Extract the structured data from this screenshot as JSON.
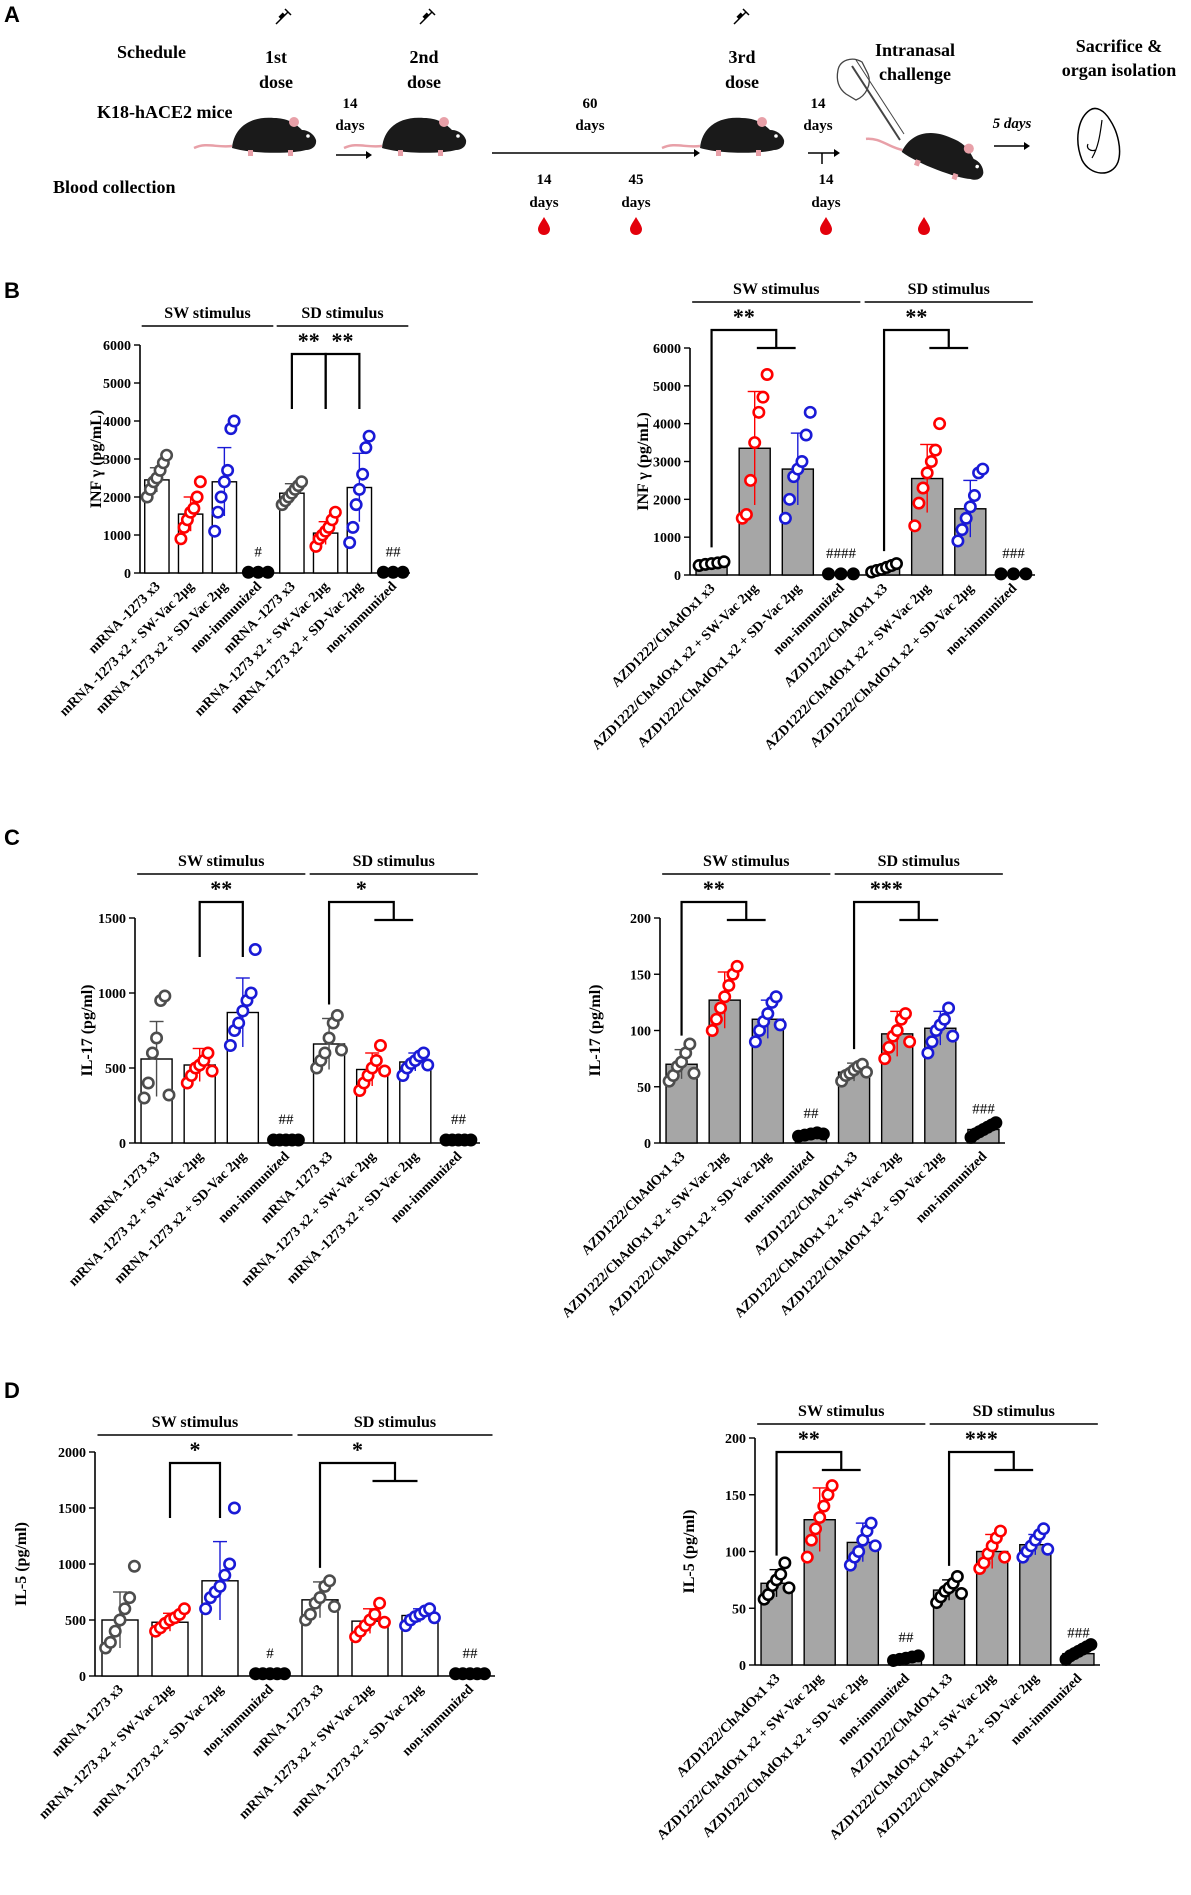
{
  "colors": {
    "black": "#000000",
    "gray": "#4d4d4d",
    "red": "#ff0000",
    "blue": "#1a1ad6",
    "barGray": "#a6a6a6",
    "mouse": "#1a1a1a",
    "pink": "#e8a0a8",
    "blood": "#e3000b"
  },
  "panelA": {
    "label": "A",
    "rows": {
      "schedule": "Schedule",
      "mice": "K18-hACE2  mice",
      "blood": "Blood collection"
    },
    "dose1": [
      "1st",
      "dose"
    ],
    "dose2": [
      "2nd",
      "dose"
    ],
    "dose3": [
      "3rd",
      "dose"
    ],
    "interval1": [
      "14",
      "days"
    ],
    "interval2": [
      "60",
      "days"
    ],
    "bleed1": [
      "14",
      "days"
    ],
    "bleed2": [
      "45",
      "days"
    ],
    "interval3": [
      "14",
      "days"
    ],
    "bleed3": [
      "14",
      "days"
    ],
    "challenge": [
      "Intranasal",
      "challenge"
    ],
    "interval4": "5 days",
    "sacrifice": [
      "Sacrifice &",
      "organ isolation"
    ]
  },
  "chart_data": [
    {
      "id": "B-left",
      "panel": "B",
      "type": "bar",
      "ylabel": "INF γ (pg/mL)",
      "ylim": [
        0,
        6000
      ],
      "yticks": [
        0,
        1000,
        2000,
        3000,
        4000,
        5000,
        6000
      ],
      "groups": [
        {
          "name": "SW stimulus",
          "from": 0,
          "to": 3
        },
        {
          "name": "SD stimulus",
          "from": 4,
          "to": 7
        }
      ],
      "categories": [
        "mRNA -1273 x3",
        "mRNA -1273 x2 + SW-Vac 2µg",
        "mRNA -1273 x2 + SD-Vac 2µg",
        "non-immunized",
        "mRNA -1273 x3",
        "mRNA -1273 x2 + SW-Vac 2µg",
        "mRNA -1273 x2 + SD-Vac 2µg",
        "non-immunized"
      ],
      "colors": [
        "gray",
        "red",
        "blue",
        "black",
        "gray",
        "red",
        "blue",
        "black"
      ],
      "values": [
        2450,
        1550,
        2400,
        10,
        2100,
        1050,
        2250,
        10
      ],
      "errors": [
        320,
        450,
        900,
        0,
        250,
        300,
        900,
        0
      ],
      "points": [
        [
          2000,
          2200,
          2400,
          2500,
          2700,
          2900,
          3100
        ],
        [
          900,
          1200,
          1400,
          1600,
          1700,
          2000,
          2400
        ],
        [
          1100,
          1600,
          2000,
          2400,
          2700,
          3800,
          4000
        ],
        [
          20,
          20,
          20
        ],
        [
          1800,
          1900,
          2000,
          2100,
          2200,
          2300,
          2400
        ],
        [
          700,
          900,
          1000,
          1100,
          1200,
          1400,
          1600
        ],
        [
          800,
          1200,
          1800,
          2200,
          2600,
          3300,
          3600
        ],
        [
          20,
          20,
          20
        ]
      ],
      "annotations": [
        {
          "cat": 3,
          "text": "#"
        },
        {
          "cat": 7,
          "text": "##"
        }
      ],
      "sigs": [
        {
          "from": 4,
          "to": 5,
          "text": "**",
          "style": "box"
        },
        {
          "from": 5,
          "to": 6,
          "text": "**",
          "style": "box"
        }
      ]
    },
    {
      "id": "B-right",
      "panel": "B",
      "type": "bar",
      "ylabel": "INF γ (pg/mL)",
      "ylim": [
        0,
        6000
      ],
      "yticks": [
        0,
        1000,
        2000,
        3000,
        4000,
        5000,
        6000
      ],
      "groups": [
        {
          "name": "SW stimulus",
          "from": 0,
          "to": 3
        },
        {
          "name": "SD stimulus",
          "from": 4,
          "to": 7
        }
      ],
      "categories": [
        "AZD1222/ChAdOx1 x3",
        "AZD1222/ChAdOx1 x2 + SW-Vac 2µg",
        "AZD1222/ChAdOx1 x2 + SD-Vac 2µg",
        "non-immunized",
        "AZD1222/ChAdOx1 x3",
        "AZD1222/ChAdOx1 x2 + SW-Vac 2µg",
        "AZD1222/ChAdOx1 x2 + SD-Vac 2µg",
        "non-immunized"
      ],
      "colors": [
        "black",
        "red",
        "blue",
        "black",
        "black",
        "red",
        "blue",
        "black"
      ],
      "values": [
        300,
        3350,
        2800,
        30,
        180,
        2550,
        1750,
        30
      ],
      "errors": [
        60,
        1500,
        950,
        0,
        80,
        900,
        750,
        0
      ],
      "points": [
        [
          250,
          280,
          300,
          320,
          350
        ],
        [
          1500,
          1600,
          2500,
          3500,
          4300,
          4700,
          5300
        ],
        [
          1500,
          2000,
          2600,
          2800,
          3000,
          3700,
          4300
        ],
        [
          30,
          30,
          30
        ],
        [
          80,
          120,
          150,
          200,
          250,
          300
        ],
        [
          1300,
          1900,
          2300,
          2700,
          3000,
          3300,
          4000
        ],
        [
          900,
          1200,
          1500,
          1800,
          2100,
          2700,
          2800
        ],
        [
          30,
          30,
          30
        ]
      ],
      "annotations": [
        {
          "cat": 3,
          "text": "####"
        },
        {
          "cat": 7,
          "text": "###"
        }
      ],
      "sigs": [
        {
          "from": 0,
          "to": 1.5,
          "text": "**",
          "style": "tee"
        },
        {
          "from": 4,
          "to": 5.5,
          "text": "**",
          "style": "tee"
        }
      ]
    },
    {
      "id": "C-left",
      "panel": "C",
      "type": "bar",
      "ylabel": "IL-17 (pg/ml)",
      "ylim": [
        0,
        1500
      ],
      "yticks": [
        0,
        500,
        1000,
        1500
      ],
      "groups": [
        {
          "name": "SW stimulus",
          "from": 0,
          "to": 3
        },
        {
          "name": "SD stimulus",
          "from": 4,
          "to": 7
        }
      ],
      "categories": [
        "mRNA -1273 x3",
        "mRNA -1273 x2 + SW-Vac 2µg",
        "mRNA -1273 x2 + SD-Vac 2µg",
        "non-immunized",
        "mRNA -1273 x3",
        "mRNA -1273 x2 + SW-Vac 2µg",
        "mRNA -1273 x2 + SD-Vac 2µg",
        "non-immunized"
      ],
      "colors": [
        "gray",
        "red",
        "blue",
        "black",
        "gray",
        "red",
        "blue",
        "black"
      ],
      "values": [
        560,
        520,
        870,
        20,
        660,
        490,
        540,
        20
      ],
      "errors": [
        250,
        110,
        230,
        0,
        170,
        110,
        60,
        0
      ],
      "points": [
        [
          300,
          400,
          600,
          700,
          950,
          980,
          320
        ],
        [
          400,
          450,
          500,
          520,
          550,
          600,
          480
        ],
        [
          650,
          750,
          800,
          880,
          950,
          1000,
          1290
        ],
        [
          20,
          20,
          20,
          20,
          20
        ],
        [
          500,
          550,
          600,
          700,
          800,
          850,
          620
        ],
        [
          350,
          400,
          450,
          500,
          550,
          650,
          480
        ],
        [
          450,
          500,
          530,
          550,
          580,
          600,
          520
        ],
        [
          20,
          20,
          20,
          20,
          20
        ]
      ],
      "annotations": [
        {
          "cat": 3,
          "text": "##"
        },
        {
          "cat": 7,
          "text": "##"
        }
      ],
      "sigs": [
        {
          "from": 1,
          "to": 2,
          "text": "**",
          "style": "box"
        },
        {
          "from": 4,
          "to": 5.5,
          "text": "*",
          "style": "tee"
        }
      ]
    },
    {
      "id": "C-right",
      "panel": "C",
      "type": "bar",
      "ylabel": "IL-17 (pg/ml)",
      "ylim": [
        0,
        200
      ],
      "yticks": [
        0,
        50,
        100,
        150,
        200
      ],
      "groups": [
        {
          "name": "SW stimulus",
          "from": 0,
          "to": 3
        },
        {
          "name": "SD stimulus",
          "from": 4,
          "to": 7
        }
      ],
      "categories": [
        "AZD1222/ChAdOx1 x3",
        "AZD1222/ChAdOx1 x2 + SW-Vac 2µg",
        "AZD1222/ChAdOx1 x2 + SD-Vac 2µg",
        "non-immunized",
        "AZD1222/ChAdOx1 x3",
        "AZD1222/ChAdOx1 x2 + SW-Vac 2µg",
        "AZD1222/ChAdOx1 x2 + SD-Vac 2µg",
        "non-immunized"
      ],
      "colors": [
        "gray",
        "red",
        "blue",
        "black",
        "gray",
        "red",
        "blue",
        "black"
      ],
      "values": [
        70,
        127,
        110,
        8,
        63,
        97,
        102,
        12
      ],
      "errors": [
        13,
        25,
        17,
        0,
        8,
        20,
        15,
        0
      ],
      "points": [
        [
          55,
          60,
          68,
          72,
          80,
          88,
          62
        ],
        [
          100,
          110,
          120,
          130,
          140,
          150,
          157
        ],
        [
          90,
          100,
          108,
          115,
          125,
          130,
          105
        ],
        [
          6,
          7,
          8,
          9,
          8
        ],
        [
          55,
          60,
          62,
          65,
          68,
          70,
          63
        ],
        [
          75,
          85,
          95,
          100,
          110,
          115,
          90
        ],
        [
          80,
          90,
          100,
          105,
          110,
          120,
          95
        ],
        [
          5,
          8,
          10,
          12,
          14,
          16,
          18
        ]
      ],
      "annotations": [
        {
          "cat": 3,
          "text": "##"
        },
        {
          "cat": 7,
          "text": "###"
        }
      ],
      "sigs": [
        {
          "from": 0,
          "to": 1.5,
          "text": "**",
          "style": "tee"
        },
        {
          "from": 4,
          "to": 5.5,
          "text": "***",
          "style": "tee"
        }
      ]
    },
    {
      "id": "D-left",
      "panel": "D",
      "type": "bar",
      "ylabel": "IL-5 (pg/ml)",
      "ylim": [
        0,
        2000
      ],
      "yticks": [
        0,
        500,
        1000,
        1500,
        2000
      ],
      "groups": [
        {
          "name": "SW stimulus",
          "from": 0,
          "to": 3
        },
        {
          "name": "SD stimulus",
          "from": 4,
          "to": 7
        }
      ],
      "categories": [
        "mRNA -1273 x3",
        "mRNA -1273 x2 + SW-Vac 2µg",
        "mRNA -1273 x2 + SD-Vac 2µg",
        "non-immunized",
        "mRNA -1273 x3",
        "mRNA -1273 x2 + SW-Vac 2µg",
        "mRNA -1273 x2 + SD-Vac 2µg",
        "non-immunized"
      ],
      "colors": [
        "gray",
        "red",
        "blue",
        "black",
        "gray",
        "red",
        "blue",
        "black"
      ],
      "values": [
        500,
        480,
        850,
        20,
        680,
        490,
        540,
        20
      ],
      "errors": [
        250,
        80,
        350,
        0,
        160,
        110,
        60,
        0
      ],
      "points": [
        [
          250,
          300,
          400,
          500,
          600,
          700,
          980
        ],
        [
          400,
          430,
          470,
          500,
          520,
          550,
          600
        ],
        [
          600,
          700,
          750,
          800,
          900,
          1000,
          1500
        ],
        [
          20,
          20,
          20,
          20,
          20
        ],
        [
          500,
          550,
          650,
          700,
          800,
          850,
          620
        ],
        [
          350,
          400,
          450,
          500,
          550,
          650,
          480
        ],
        [
          450,
          500,
          530,
          550,
          580,
          600,
          520
        ],
        [
          20,
          20,
          20,
          20,
          20
        ]
      ],
      "annotations": [
        {
          "cat": 3,
          "text": "#"
        },
        {
          "cat": 7,
          "text": "##"
        }
      ],
      "sigs": [
        {
          "from": 1,
          "to": 2,
          "text": "*",
          "style": "box"
        },
        {
          "from": 4,
          "to": 5.5,
          "text": "*",
          "style": "tee"
        }
      ]
    },
    {
      "id": "D-right",
      "panel": "D",
      "type": "bar",
      "ylabel": "IL-5 (pg/ml)",
      "ylim": [
        0,
        200
      ],
      "yticks": [
        0,
        50,
        100,
        150,
        200
      ],
      "groups": [
        {
          "name": "SW stimulus",
          "from": 0,
          "to": 3
        },
        {
          "name": "SD stimulus",
          "from": 4,
          "to": 7
        }
      ],
      "categories": [
        "AZD1222/ChAdOx1 x3",
        "AZD1222/ChAdOx1 x2 + SW-Vac 2µg",
        "AZD1222/ChAdOx1 x2 + SD-Vac 2µg",
        "non-immunized",
        "AZD1222/ChAdOx1 x3",
        "AZD1222/ChAdOx1 x2 + SW-Vac 2µg",
        "AZD1222/ChAdOx1 x2 + SD-Vac 2µg",
        "non-immunized"
      ],
      "colors": [
        "black",
        "red",
        "blue",
        "black",
        "black",
        "red",
        "blue",
        "black"
      ],
      "values": [
        72,
        128,
        108,
        6,
        66,
        100,
        106,
        10
      ],
      "errors": [
        12,
        28,
        17,
        0,
        9,
        15,
        9,
        0
      ],
      "points": [
        [
          58,
          62,
          70,
          75,
          80,
          90,
          68
        ],
        [
          95,
          110,
          120,
          130,
          140,
          150,
          158
        ],
        [
          88,
          95,
          100,
          110,
          118,
          125,
          105
        ],
        [
          4,
          5,
          6,
          7,
          8
        ],
        [
          55,
          60,
          65,
          68,
          72,
          78,
          63
        ],
        [
          85,
          90,
          98,
          105,
          112,
          118,
          95
        ],
        [
          95,
          100,
          105,
          110,
          115,
          120,
          102
        ],
        [
          5,
          8,
          10,
          12,
          14,
          16,
          18
        ]
      ],
      "annotations": [
        {
          "cat": 3,
          "text": "##"
        },
        {
          "cat": 7,
          "text": "###"
        }
      ],
      "sigs": [
        {
          "from": 0,
          "to": 1.5,
          "text": "**",
          "style": "tee"
        },
        {
          "from": 4,
          "to": 5.5,
          "text": "***",
          "style": "tee"
        }
      ]
    }
  ],
  "panelLabels": {
    "B": "B",
    "C": "C",
    "D": "D"
  }
}
